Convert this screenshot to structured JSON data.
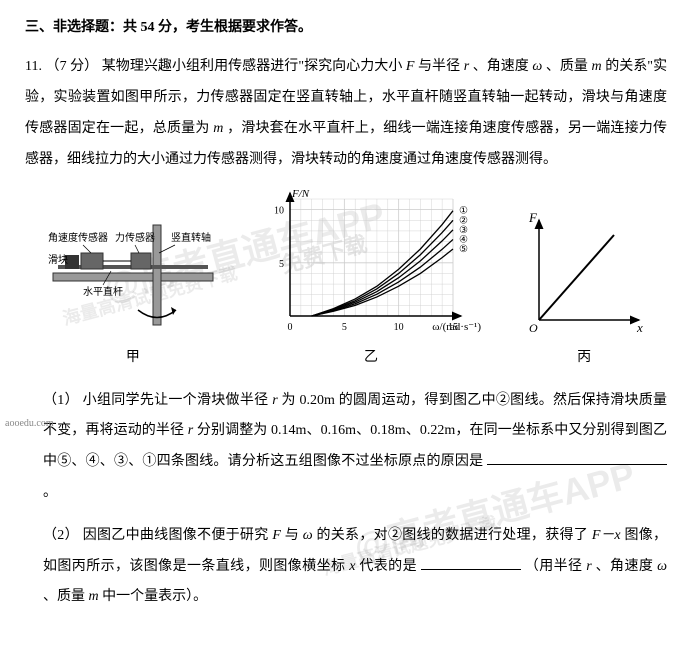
{
  "section": {
    "title": "三、非选择题：共 54 分，考生根据要求作答。"
  },
  "question": {
    "number": "11.",
    "points": "（7 分）",
    "text_parts": [
      "某物理兴趣小组利用传感器进行\"探究向心力大小 ",
      " 与半径 ",
      "、角速度 ",
      "、质量 ",
      " 的关系\"实验，实验装置如图甲所示，力传感器固定在竖直转轴上，水平直杆随竖直转轴一起转动，滑块与角速度传感器固定在一起，总质量为 ",
      "，滑块套在水平直杆上，细线一端连接角速度传感器，另一端连接力传感器，细线拉力的大小通过力传感器测得，滑块转动的角速度通过角速度传感器测得。"
    ],
    "vars": {
      "F": "F",
      "r": "r",
      "omega": "ω",
      "m": "m"
    }
  },
  "figure_a": {
    "caption": "甲",
    "labels": {
      "angular_sensor": "角速度传感器",
      "force_sensor": "力传感器",
      "vertical_axis": "竖直转轴",
      "slider": "滑块",
      "horizontal_rod": "水平直杆"
    },
    "colors": {
      "base": "#888888",
      "rod": "#333333"
    }
  },
  "figure_b": {
    "caption": "乙",
    "type": "line",
    "ylabel": "F/N",
    "xlabel": "ω/(rad·s⁻¹)",
    "xlim": [
      0,
      15
    ],
    "ylim": [
      0,
      11
    ],
    "xticks": [
      0,
      5,
      10,
      15
    ],
    "yticks": [
      0,
      5,
      10
    ],
    "grid_color": "#cccccc",
    "bg": "#ffffff",
    "axis_color": "#000000",
    "curve_color": "#000000",
    "series": [
      {
        "label": "①",
        "points": [
          [
            2,
            0
          ],
          [
            4,
            0.7
          ],
          [
            6,
            1.6
          ],
          [
            8,
            2.8
          ],
          [
            10,
            4.4
          ],
          [
            12,
            6.3
          ],
          [
            14,
            8.6
          ],
          [
            15,
            9.9
          ]
        ]
      },
      {
        "label": "②",
        "points": [
          [
            2,
            0
          ],
          [
            4,
            0.64
          ],
          [
            6,
            1.44
          ],
          [
            8,
            2.56
          ],
          [
            10,
            4.0
          ],
          [
            12,
            5.76
          ],
          [
            14,
            7.84
          ],
          [
            15,
            9.0
          ]
        ]
      },
      {
        "label": "③",
        "points": [
          [
            2,
            0
          ],
          [
            4,
            0.58
          ],
          [
            6,
            1.3
          ],
          [
            8,
            2.3
          ],
          [
            10,
            3.6
          ],
          [
            12,
            5.18
          ],
          [
            14,
            7.06
          ],
          [
            15,
            8.1
          ]
        ]
      },
      {
        "label": "④",
        "points": [
          [
            2,
            0
          ],
          [
            4,
            0.51
          ],
          [
            6,
            1.15
          ],
          [
            8,
            2.05
          ],
          [
            10,
            3.2
          ],
          [
            12,
            4.6
          ],
          [
            14,
            6.27
          ],
          [
            15,
            7.2
          ]
        ]
      },
      {
        "label": "⑤",
        "points": [
          [
            2,
            0
          ],
          [
            4,
            0.45
          ],
          [
            6,
            1.0
          ],
          [
            8,
            1.79
          ],
          [
            10,
            2.8
          ],
          [
            12,
            4.0
          ],
          [
            14,
            5.49
          ],
          [
            15,
            6.3
          ]
        ]
      }
    ],
    "label_fontsize": 10
  },
  "figure_c": {
    "caption": "丙",
    "type": "line",
    "ylabel": "F",
    "xlabel": "x",
    "axis_color": "#000000",
    "line_color": "#000000",
    "origin_label": "O"
  },
  "sub1": {
    "num": "（1）",
    "text_parts": [
      "小组同学先让一个滑块做半径 ",
      " 为 0.20m 的圆周运动，得到图乙中②图线。然后保持滑块质量不变，再将运动的半径 ",
      " 分别调整为 0.14m、0.16m、0.18m、0.22m，在同一坐标系中又分别得到图乙中⑤、④、③、①四条图线。请分析这五组图像不过坐标原点的原因是"
    ],
    "end": "。"
  },
  "sub2": {
    "num": "（2）",
    "text_parts": [
      "因图乙中曲线图像不便于研究 ",
      " 与 ",
      " 的关系，对②图线的数据进行处理，获得了 ",
      " 图像，如图丙所示，该图像是一条直线，则图像横坐标 ",
      " 代表的是"
    ],
    "end_parts": [
      "（用半径 ",
      "、角速度 ",
      "、质量 ",
      " 中一个量表示）。"
    ],
    "vars": {
      "F": "F",
      "omega": "ω",
      "Fx": "F－x",
      "x": "x",
      "r": "r",
      "m": "m"
    }
  },
  "watermarks": {
    "w1": "@高考直通车APP",
    "w2": "海量高清试题免费下载",
    "w3": "@高考直通车APP",
    "w4": "海量高清试题免费下载",
    "w5": "免费下载"
  },
  "footer": {
    "url": "aooedu.com"
  }
}
